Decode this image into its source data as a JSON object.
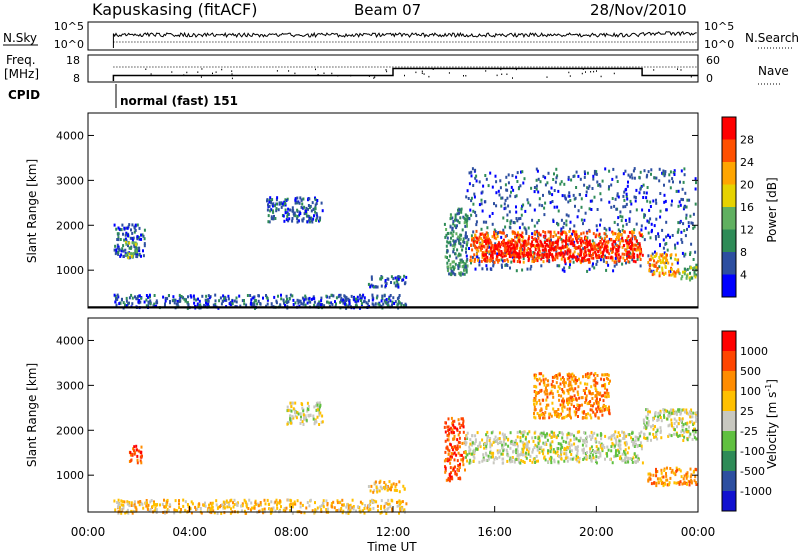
{
  "header": {
    "station": "Kapuskasing (fitACF)",
    "beam": "Beam 07",
    "date": "28/Nov/2010"
  },
  "top_panels": {
    "nsky_label": "N.Sky",
    "nsky_ticks": [
      "10^5",
      "10^0"
    ],
    "nsearch_label": "N.Search",
    "nsearch_ticks": [
      "10^5",
      "10^0"
    ],
    "freq_label_1": "Freq.",
    "freq_label_2": "[MHz]",
    "freq_ticks": [
      "18",
      "8"
    ],
    "nave_label": "Nave",
    "nave_ticks": [
      "60",
      "0"
    ],
    "cpid_label": "CPID",
    "cpid_text": "normal (fast) 151",
    "freq_mhz_segments": [
      {
        "start_h": 1.0,
        "end_h": 12.0,
        "value": 10.2
      },
      {
        "start_h": 12.0,
        "end_h": 21.8,
        "value": 13.0
      },
      {
        "start_h": 21.8,
        "end_h": 24.0,
        "value": 10.2
      }
    ]
  },
  "colors": {
    "power": [
      "#0000ff",
      "#2d4fa0",
      "#2e8b57",
      "#60b060",
      "#e6d200",
      "#ffa500",
      "#ff5000",
      "#ff0000"
    ],
    "velocity": [
      "#1111d0",
      "#2d4fa0",
      "#2e8b57",
      "#60c040",
      "#c8c8c0",
      "#ffc000",
      "#ff8c00",
      "#ff4500",
      "#ff0000"
    ]
  },
  "chart_data": [
    {
      "type": "heatmap",
      "parameter": "power",
      "ylabel": "Slant Range [km]",
      "xlabel": "",
      "ylim": [
        180,
        4500
      ],
      "xlim": [
        0,
        24
      ],
      "yticks": [
        "1000",
        "2000",
        "3000",
        "4000"
      ],
      "colorbar": {
        "label": "Power [dB]",
        "ticks": [
          "28",
          "24",
          "20",
          "16",
          "12",
          "8",
          "4"
        ]
      },
      "regions": [
        {
          "t0": 1.0,
          "t1": 12.5,
          "r0": 180,
          "r1": 480,
          "level": 1
        },
        {
          "t0": 1.0,
          "t1": 2.2,
          "r0": 1300,
          "r1": 2050,
          "level": 1
        },
        {
          "t0": 1.4,
          "t1": 1.9,
          "r0": 1300,
          "r1": 1650,
          "level": 3
        },
        {
          "t0": 7.0,
          "t1": 9.2,
          "r0": 2100,
          "r1": 2650,
          "level": 1
        },
        {
          "t0": 11.0,
          "t1": 12.5,
          "r0": 650,
          "r1": 900,
          "level": 1
        },
        {
          "t0": 14.0,
          "t1": 14.9,
          "r0": 900,
          "r1": 2400,
          "level": 2
        },
        {
          "t0": 14.8,
          "t1": 23.9,
          "r0": 1000,
          "r1": 3300,
          "level": 1
        },
        {
          "t0": 15.0,
          "t1": 21.8,
          "r0": 1200,
          "r1": 1900,
          "level": 6
        },
        {
          "t0": 15.5,
          "t1": 21.5,
          "r0": 1300,
          "r1": 1700,
          "level": 7
        },
        {
          "t0": 22.0,
          "t1": 23.2,
          "r0": 900,
          "r1": 1400,
          "level": 5
        },
        {
          "t0": 23.2,
          "t1": 23.9,
          "r0": 800,
          "r1": 1100,
          "level": 3
        }
      ]
    },
    {
      "type": "heatmap",
      "parameter": "velocity",
      "ylabel": "Slant Range [km]",
      "xlabel": "Time UT",
      "ylim": [
        180,
        4500
      ],
      "xlim": [
        0,
        24
      ],
      "yticks": [
        "1000",
        "2000",
        "3000",
        "4000"
      ],
      "xticks": [
        "00:00",
        "04:00",
        "08:00",
        "12:00",
        "16:00",
        "20:00",
        "00:00"
      ],
      "colorbar": {
        "label": "Velocity [m s",
        "label_sup": "-1",
        "label_end": "]",
        "ticks": [
          "1000",
          "500",
          "100",
          "25",
          "-25",
          "-100",
          "-500",
          "-1000"
        ]
      },
      "regions": [
        {
          "t0": 1.0,
          "t1": 12.5,
          "r0": 180,
          "r1": 480,
          "level": 5
        },
        {
          "t0": 1.6,
          "t1": 2.1,
          "r0": 1300,
          "r1": 1700,
          "level": 7
        },
        {
          "t0": 7.8,
          "t1": 9.2,
          "r0": 2150,
          "r1": 2650,
          "level": 4
        },
        {
          "t0": 11.0,
          "t1": 12.5,
          "r0": 650,
          "r1": 900,
          "level": 5
        },
        {
          "t0": 14.0,
          "t1": 14.8,
          "r0": 900,
          "r1": 2300,
          "level": 7
        },
        {
          "t0": 14.8,
          "t1": 21.8,
          "r0": 1300,
          "r1": 2000,
          "level": 4
        },
        {
          "t0": 17.5,
          "t1": 20.5,
          "r0": 2300,
          "r1": 3300,
          "level": 6
        },
        {
          "t0": 21.8,
          "t1": 23.9,
          "r0": 1800,
          "r1": 2500,
          "level": 4
        },
        {
          "t0": 22.0,
          "t1": 23.9,
          "r0": 800,
          "r1": 1200,
          "level": 6
        }
      ]
    }
  ]
}
